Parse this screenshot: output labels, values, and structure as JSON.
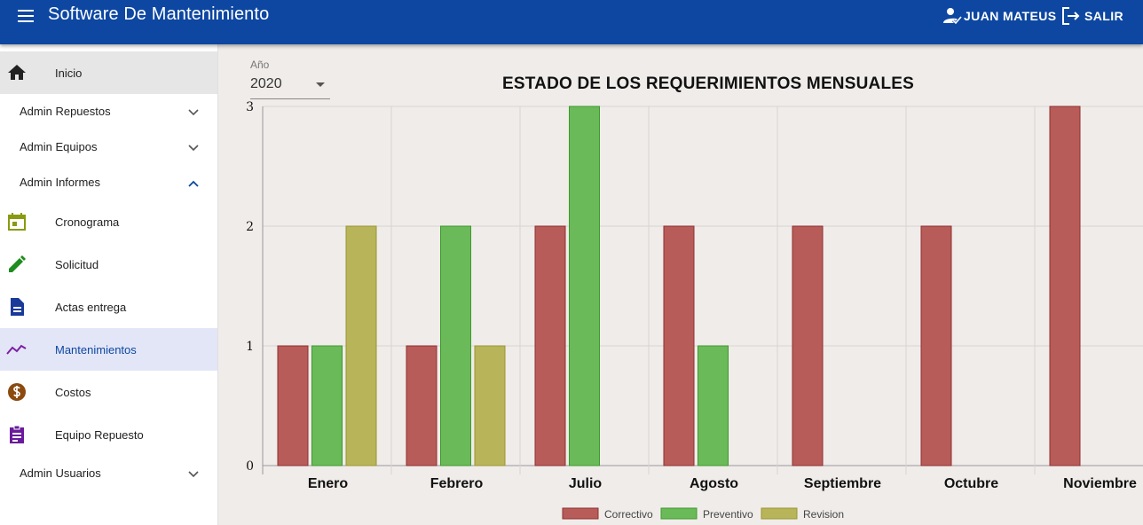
{
  "header": {
    "title": "Software De Mantenimiento",
    "user_label": "JUAN MATEUS",
    "logout_label": "SALIR"
  },
  "sidebar": {
    "inicio": "Inicio",
    "admin_repuestos": "Admin Repuestos",
    "admin_equipos": "Admin Equipos",
    "admin_informes": "Admin Informes",
    "cronograma": "Cronograma",
    "solicitud": "Solicitud",
    "actas_entrega": "Actas entrega",
    "mantenimientos": "Mantenimientos",
    "costos": "Costos",
    "equipo_repuesto": "Equipo Repuesto",
    "admin_usuarios": "Admin Usuarios"
  },
  "filter": {
    "year_label": "Año",
    "year_value": "2020"
  },
  "chart_data": {
    "type": "bar",
    "title": "ESTADO DE LOS REQUERIMIENTOS MENSUALES",
    "categories": [
      "Enero",
      "Febrero",
      "Julio",
      "Agosto",
      "Septiembre",
      "Octubre",
      "Noviembre"
    ],
    "series": [
      {
        "name": "Correctivo",
        "color": "#b85c5a",
        "values": [
          1,
          1,
          2,
          2,
          2,
          2,
          3
        ]
      },
      {
        "name": "Preventivo",
        "color": "#6aba5a",
        "values": [
          1,
          2,
          3,
          1,
          0,
          0,
          0
        ]
      },
      {
        "name": "Revision",
        "color": "#b8b45a",
        "values": [
          2,
          1,
          0,
          0,
          0,
          0,
          0
        ]
      }
    ],
    "ylim": [
      0,
      3
    ],
    "yticks": [
      0,
      1,
      2,
      3
    ],
    "grid": true,
    "legend": "bottom"
  }
}
